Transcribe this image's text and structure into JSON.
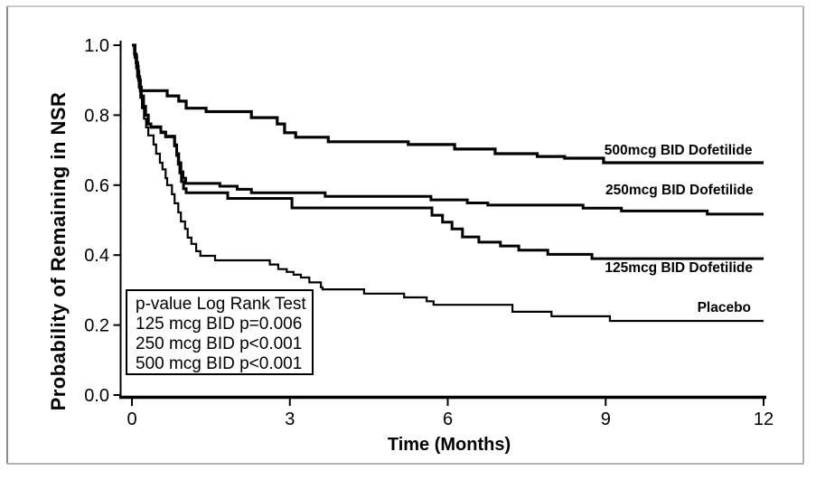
{
  "figure": {
    "background_color": "#ffffff",
    "frame_border_color": "#b3b3b3",
    "line_color": "#000000"
  },
  "chart_data": {
    "type": "line",
    "subtype": "step-survival",
    "title": "",
    "xlabel": "Time (Months)",
    "ylabel": "Probability of Remaining in NSR",
    "xlim": [
      0,
      12
    ],
    "ylim": [
      0.0,
      1.0
    ],
    "xticks": [
      "0",
      "3",
      "6",
      "9",
      "12"
    ],
    "yticks": [
      "0.0",
      "0.2",
      "0.4",
      "0.6",
      "0.8",
      "1.0"
    ],
    "grid": false,
    "legend_position": "direct-labels-on-plot",
    "annotation": {
      "title": "p-value Log Rank Test",
      "lines": [
        "125 mcg BID p=0.006",
        "250 mcg BID p<0.001",
        "500 mcg BID p<0.001"
      ]
    },
    "series": [
      {
        "name": "500mcg BID Dofetilide",
        "label": {
          "x": 10.38,
          "y": 0.698
        },
        "points": [
          [
            0,
            1.0
          ],
          [
            0.05,
            0.975
          ],
          [
            0.08,
            0.95
          ],
          [
            0.11,
            0.925
          ],
          [
            0.13,
            0.9
          ],
          [
            0.16,
            0.87
          ],
          [
            0.67,
            0.855
          ],
          [
            0.89,
            0.84
          ],
          [
            1.03,
            0.82
          ],
          [
            1.41,
            0.81
          ],
          [
            2.27,
            0.793
          ],
          [
            2.76,
            0.775
          ],
          [
            2.9,
            0.75
          ],
          [
            3.11,
            0.737
          ],
          [
            3.73,
            0.724
          ],
          [
            5.25,
            0.716
          ],
          [
            6.13,
            0.703
          ],
          [
            6.9,
            0.69
          ],
          [
            7.7,
            0.682
          ],
          [
            8.22,
            0.677
          ],
          [
            8.96,
            0.664
          ],
          [
            12,
            0.664
          ]
        ]
      },
      {
        "name": "250mcg BID Dofetilide",
        "label": {
          "x": 10.4,
          "y": 0.584
        },
        "points": [
          [
            0,
            1.0
          ],
          [
            0.06,
            0.97
          ],
          [
            0.09,
            0.94
          ],
          [
            0.12,
            0.91
          ],
          [
            0.15,
            0.88
          ],
          [
            0.18,
            0.855
          ],
          [
            0.22,
            0.825
          ],
          [
            0.26,
            0.8
          ],
          [
            0.31,
            0.775
          ],
          [
            0.36,
            0.767
          ],
          [
            0.55,
            0.752
          ],
          [
            0.64,
            0.74
          ],
          [
            0.81,
            0.715
          ],
          [
            0.85,
            0.69
          ],
          [
            0.89,
            0.664
          ],
          [
            0.93,
            0.638
          ],
          [
            0.97,
            0.62
          ],
          [
            1.02,
            0.605
          ],
          [
            1.67,
            0.597
          ],
          [
            2.0,
            0.588
          ],
          [
            2.27,
            0.578
          ],
          [
            3.67,
            0.568
          ],
          [
            5.68,
            0.558
          ],
          [
            6.37,
            0.549
          ],
          [
            6.76,
            0.543
          ],
          [
            8.57,
            0.534
          ],
          [
            9.3,
            0.526
          ],
          [
            10.93,
            0.517
          ],
          [
            12,
            0.517
          ]
        ]
      },
      {
        "name": "125mcg BID Dofetilide",
        "label": {
          "x": 10.39,
          "y": 0.363
        },
        "points": [
          [
            0,
            1.0
          ],
          [
            0.06,
            0.965
          ],
          [
            0.09,
            0.935
          ],
          [
            0.12,
            0.905
          ],
          [
            0.15,
            0.878
          ],
          [
            0.18,
            0.852
          ],
          [
            0.22,
            0.825
          ],
          [
            0.26,
            0.8
          ],
          [
            0.31,
            0.775
          ],
          [
            0.36,
            0.765
          ],
          [
            0.55,
            0.75
          ],
          [
            0.64,
            0.738
          ],
          [
            0.81,
            0.712
          ],
          [
            0.85,
            0.685
          ],
          [
            0.88,
            0.66
          ],
          [
            0.91,
            0.635
          ],
          [
            0.94,
            0.61
          ],
          [
            0.98,
            0.59
          ],
          [
            1.03,
            0.578
          ],
          [
            1.82,
            0.562
          ],
          [
            3.04,
            0.535
          ],
          [
            5.7,
            0.514
          ],
          [
            5.9,
            0.494
          ],
          [
            6.08,
            0.475
          ],
          [
            6.28,
            0.452
          ],
          [
            6.59,
            0.437
          ],
          [
            7.0,
            0.426
          ],
          [
            7.35,
            0.414
          ],
          [
            7.9,
            0.402
          ],
          [
            8.74,
            0.39
          ],
          [
            12,
            0.39
          ]
        ]
      },
      {
        "name": "Placebo",
        "label": {
          "x": 11.25,
          "y": 0.248
        },
        "points": [
          [
            0,
            1.0
          ],
          [
            0.05,
            0.97
          ],
          [
            0.08,
            0.94
          ],
          [
            0.1,
            0.91
          ],
          [
            0.13,
            0.88
          ],
          [
            0.16,
            0.85
          ],
          [
            0.19,
            0.82
          ],
          [
            0.23,
            0.79
          ],
          [
            0.27,
            0.765
          ],
          [
            0.31,
            0.742
          ],
          [
            0.41,
            0.716
          ],
          [
            0.46,
            0.69
          ],
          [
            0.53,
            0.664
          ],
          [
            0.58,
            0.645
          ],
          [
            0.64,
            0.62
          ],
          [
            0.67,
            0.6
          ],
          [
            0.76,
            0.574
          ],
          [
            0.81,
            0.548
          ],
          [
            0.88,
            0.522
          ],
          [
            0.93,
            0.496
          ],
          [
            1.01,
            0.475
          ],
          [
            1.06,
            0.45
          ],
          [
            1.13,
            0.432
          ],
          [
            1.22,
            0.411
          ],
          [
            1.3,
            0.398
          ],
          [
            1.58,
            0.385
          ],
          [
            2.62,
            0.373
          ],
          [
            2.78,
            0.36
          ],
          [
            2.94,
            0.352
          ],
          [
            3.07,
            0.344
          ],
          [
            3.21,
            0.336
          ],
          [
            3.37,
            0.322
          ],
          [
            3.59,
            0.308
          ],
          [
            3.62,
            0.302
          ],
          [
            4.41,
            0.29
          ],
          [
            5.17,
            0.279
          ],
          [
            5.6,
            0.268
          ],
          [
            5.73,
            0.258
          ],
          [
            7.23,
            0.238
          ],
          [
            7.97,
            0.225
          ],
          [
            9.08,
            0.212
          ],
          [
            12,
            0.212
          ]
        ]
      }
    ]
  }
}
